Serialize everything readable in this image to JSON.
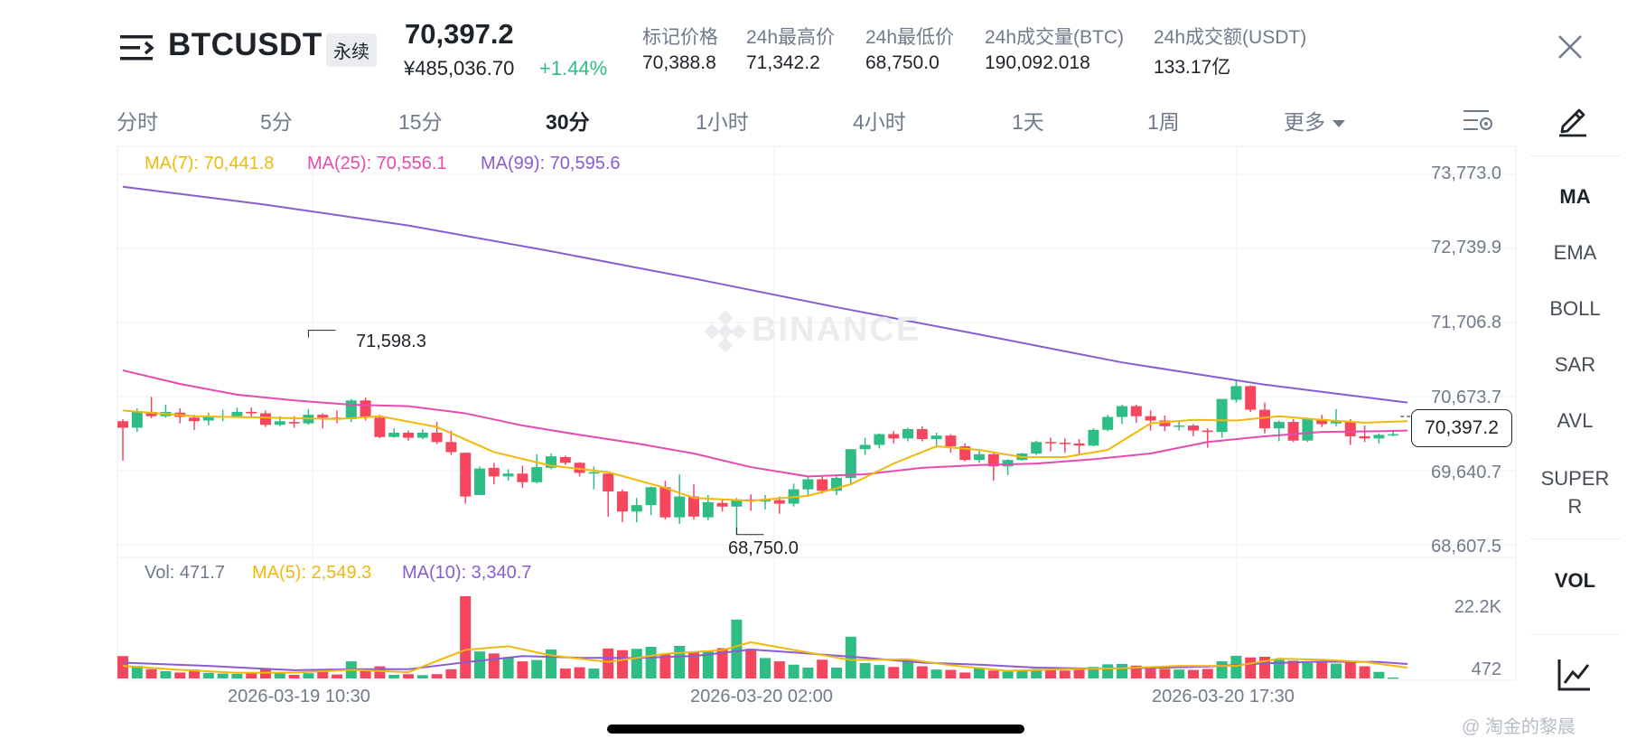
{
  "header": {
    "symbol": "BTCUSDT",
    "contract_type": "永续",
    "last_price": "70,397.2",
    "last_price_cny": "¥485,036.70",
    "change_pct": "+1.44%",
    "stats": [
      {
        "label": "标记价格",
        "value": "70,388.8"
      },
      {
        "label": "24h最高价",
        "value": "71,342.2"
      },
      {
        "label": "24h最低价",
        "value": "68,750.0"
      },
      {
        "label": "24h成交量(BTC)",
        "value": "190,092.018"
      },
      {
        "label": "24h成交额(USDT)",
        "value": "133.17亿"
      }
    ]
  },
  "intervals": [
    "分时",
    "5分",
    "15分",
    "30分",
    "1小时",
    "4小时",
    "1天",
    "1周",
    "更多"
  ],
  "active_interval": "30分",
  "sidebar": {
    "indicators": [
      "MA",
      "EMA",
      "BOLL",
      "SAR",
      "AVL",
      "SUPER"
    ],
    "indicator_super_wrap": "R",
    "sub_indicator": "VOL",
    "active_indicator": "MA"
  },
  "legend": {
    "ma7": "MA(7): 70,441.8",
    "ma25": "MA(25): 70,556.1",
    "ma99": "MA(99): 70,595.6",
    "vol": "Vol: 471.7",
    "vol_ma5": "MA(5): 2,549.3",
    "vol_ma10": "MA(10): 3,340.7"
  },
  "colors": {
    "up": "#2ebd85",
    "down": "#f6465d",
    "ma7": "#f0b90b",
    "ma25": "#e84ab0",
    "ma99": "#8a5cd1",
    "text_primary": "#1e2329",
    "text_secondary": "#707a8a"
  },
  "watermark": "BINANCE",
  "footer_credit": "@ 淘金的黎晨",
  "chart_data": {
    "type": "candlestick",
    "y_ticks": [
      "73,773.0",
      "72,739.9",
      "71,706.8",
      "70,673.7",
      "69,640.7",
      "68,607.5"
    ],
    "ylim": [
      68607.5,
      73773.0
    ],
    "vol_ticks": [
      "22.2K",
      "472"
    ],
    "x_tick_labels": [
      "2026-03-19 10:30",
      "2026-03-20 02:00",
      "2026-03-20 17:30"
    ],
    "current_price_label": "70,397.2",
    "current_price": 70397.2,
    "high_marker": {
      "label": "71,598.3",
      "value": 71598.3
    },
    "low_marker": {
      "label": "68,750.0",
      "value": 68750.0
    },
    "candles": [
      [
        70330,
        70240,
        70360,
        69780
      ],
      [
        70240,
        70460,
        70510,
        70180
      ],
      [
        70460,
        70400,
        70670,
        70370
      ],
      [
        70400,
        70460,
        70560,
        70380
      ],
      [
        70450,
        70390,
        70510,
        70300
      ],
      [
        70380,
        70330,
        70420,
        70210
      ],
      [
        70340,
        70390,
        70450,
        70270
      ],
      [
        70390,
        70400,
        70490,
        70330
      ],
      [
        70400,
        70460,
        70520,
        70380
      ],
      [
        70460,
        70440,
        70520,
        70380
      ],
      [
        70440,
        70280,
        70480,
        70250
      ],
      [
        70280,
        70330,
        70400,
        70260
      ],
      [
        70320,
        70300,
        70400,
        70240
      ],
      [
        70300,
        70420,
        70500,
        70280
      ],
      [
        70420,
        70380,
        70440,
        70230
      ],
      [
        70380,
        70360,
        70480,
        70300
      ],
      [
        70360,
        70620,
        70640,
        70320
      ],
      [
        70620,
        70380,
        70660,
        70340
      ],
      [
        70380,
        70110,
        70420,
        70090
      ],
      [
        70110,
        70170,
        70230,
        70100
      ],
      [
        70170,
        70100,
        70200,
        70060
      ],
      [
        70100,
        70170,
        70220,
        70080
      ],
      [
        70170,
        70040,
        70320,
        70010
      ],
      [
        70040,
        69900,
        70200,
        69860
      ],
      [
        69890,
        69280,
        69890,
        69180
      ],
      [
        69300,
        69670,
        69700,
        69300
      ],
      [
        69680,
        69560,
        69750,
        69450
      ],
      [
        69560,
        69600,
        69660,
        69500
      ],
      [
        69600,
        69480,
        69710,
        69400
      ],
      [
        69480,
        69690,
        69870,
        69460
      ],
      [
        69680,
        69840,
        69880,
        69660
      ],
      [
        69830,
        69750,
        69850,
        69720
      ],
      [
        69750,
        69610,
        69760,
        69560
      ],
      [
        69600,
        69620,
        69700,
        69380
      ],
      [
        69600,
        69350,
        69400,
        69000
      ],
      [
        69350,
        69070,
        69380,
        68920
      ],
      [
        69070,
        69160,
        69260,
        68920
      ],
      [
        69160,
        69410,
        69420,
        69020
      ],
      [
        69410,
        68990,
        69500,
        68960
      ],
      [
        68990,
        69280,
        69590,
        68900
      ],
      [
        69280,
        69000,
        69450,
        68960
      ],
      [
        68990,
        69200,
        69300,
        68950
      ],
      [
        69190,
        69140,
        69250,
        69070
      ],
      [
        69140,
        69240,
        69260,
        68750
      ],
      [
        69240,
        69220,
        69310,
        69080
      ],
      [
        69210,
        69240,
        69300,
        69100
      ],
      [
        69230,
        69180,
        69280,
        69040
      ],
      [
        69180,
        69380,
        69460,
        69140
      ],
      [
        69380,
        69520,
        69550,
        69280
      ],
      [
        69520,
        69360,
        69560,
        69320
      ],
      [
        69360,
        69540,
        69560,
        69300
      ],
      [
        69540,
        69940,
        69940,
        69460
      ],
      [
        69940,
        70000,
        70100,
        69860
      ],
      [
        70000,
        70150,
        70160,
        69950
      ],
      [
        70150,
        70090,
        70190,
        70020
      ],
      [
        70090,
        70220,
        70240,
        70050
      ],
      [
        70220,
        70080,
        70260,
        70050
      ],
      [
        70080,
        70130,
        70170,
        69960
      ],
      [
        70130,
        69980,
        70150,
        69890
      ],
      [
        69980,
        69790,
        70020,
        69770
      ],
      [
        69790,
        69870,
        69920,
        69750
      ],
      [
        69870,
        69700,
        69900,
        69500
      ],
      [
        69700,
        69790,
        69800,
        69580
      ],
      [
        69790,
        69880,
        69890,
        69780
      ],
      [
        69880,
        70040,
        70060,
        69860
      ],
      [
        70040,
        70030,
        70100,
        69910
      ],
      [
        70030,
        70020,
        70090,
        69890
      ],
      [
        70020,
        69990,
        70080,
        69860
      ],
      [
        69990,
        70210,
        70230,
        69980
      ],
      [
        70210,
        70390,
        70420,
        70190
      ],
      [
        70390,
        70540,
        70560,
        70290
      ],
      [
        70540,
        70400,
        70560,
        70310
      ],
      [
        70400,
        70340,
        70480,
        70200
      ],
      [
        70340,
        70260,
        70410,
        70190
      ],
      [
        70260,
        70270,
        70340,
        70200
      ],
      [
        70270,
        70200,
        70290,
        70120
      ],
      [
        70200,
        70180,
        70230,
        69960
      ],
      [
        70180,
        70640,
        70640,
        70100
      ],
      [
        70630,
        70820,
        70910,
        70590
      ],
      [
        70820,
        70490,
        70830,
        70460
      ],
      [
        70490,
        70230,
        70590,
        70160
      ],
      [
        70230,
        70320,
        70340,
        70050
      ],
      [
        70320,
        70060,
        70360,
        70040
      ],
      [
        70060,
        70360,
        70380,
        70040
      ],
      [
        70360,
        70290,
        70420,
        70250
      ],
      [
        70300,
        70330,
        70500,
        70260
      ],
      [
        70320,
        70120,
        70360,
        70000
      ],
      [
        70120,
        70090,
        70270,
        70040
      ],
      [
        70090,
        70140,
        70160,
        70020
      ],
      [
        70140,
        70150,
        70210,
        70120
      ]
    ],
    "volumes": [
      6800,
      3800,
      2800,
      2200,
      1800,
      2700,
      1700,
      1500,
      1400,
      1700,
      2800,
      1600,
      1100,
      1600,
      2400,
      1200,
      5200,
      2400,
      3700,
      1100,
      1300,
      1000,
      1300,
      2800,
      25000,
      8200,
      7600,
      6500,
      5200,
      5600,
      8800,
      3000,
      3400,
      3000,
      9100,
      8600,
      9000,
      9600,
      7600,
      9900,
      8100,
      8500,
      9200,
      17900,
      9000,
      6200,
      5200,
      4200,
      3300,
      5700,
      3300,
      12700,
      4700,
      4100,
      3500,
      5600,
      3700,
      2700,
      2600,
      1800,
      3300,
      2400,
      2100,
      2400,
      2900,
      2900,
      2400,
      3100,
      3500,
      4300,
      4400,
      3900,
      3500,
      2900,
      2700,
      2600,
      2900,
      5200,
      6900,
      6400,
      6600,
      5700,
      5400,
      4700,
      4800,
      4500,
      5000,
      3700,
      2000,
      300
    ],
    "vol_ymax": 25000,
    "ma7_line": [
      [
        0,
        70480
      ],
      [
        5,
        70400
      ],
      [
        10,
        70380
      ],
      [
        15,
        70360
      ],
      [
        18,
        70400
      ],
      [
        22,
        70250
      ],
      [
        26,
        69900
      ],
      [
        30,
        69710
      ],
      [
        34,
        69620
      ],
      [
        38,
        69400
      ],
      [
        40,
        69260
      ],
      [
        42,
        69240
      ],
      [
        44,
        69220
      ],
      [
        48,
        69290
      ],
      [
        51,
        69450
      ],
      [
        54,
        69740
      ],
      [
        57,
        69980
      ],
      [
        60,
        69930
      ],
      [
        63,
        69830
      ],
      [
        66,
        69830
      ],
      [
        69,
        69930
      ],
      [
        72,
        70300
      ],
      [
        75,
        70350
      ],
      [
        78,
        70340
      ],
      [
        81,
        70400
      ],
      [
        84,
        70350
      ],
      [
        87,
        70310
      ],
      [
        90,
        70330
      ]
    ],
    "ma25_line": [
      [
        0,
        71040
      ],
      [
        4,
        70850
      ],
      [
        8,
        70700
      ],
      [
        12,
        70620
      ],
      [
        16,
        70560
      ],
      [
        20,
        70540
      ],
      [
        24,
        70440
      ],
      [
        28,
        70270
      ],
      [
        32,
        70140
      ],
      [
        36,
        70020
      ],
      [
        40,
        69880
      ],
      [
        44,
        69690
      ],
      [
        48,
        69560
      ],
      [
        52,
        69590
      ],
      [
        56,
        69680
      ],
      [
        60,
        69720
      ],
      [
        64,
        69740
      ],
      [
        68,
        69800
      ],
      [
        72,
        69880
      ],
      [
        76,
        70040
      ],
      [
        80,
        70120
      ],
      [
        84,
        70180
      ],
      [
        88,
        70190
      ],
      [
        90,
        70200
      ]
    ],
    "ma99_line": [
      [
        0,
        73600
      ],
      [
        10,
        73350
      ],
      [
        20,
        73060
      ],
      [
        30,
        72700
      ],
      [
        40,
        72320
      ],
      [
        50,
        71920
      ],
      [
        60,
        71540
      ],
      [
        70,
        71150
      ],
      [
        80,
        70840
      ],
      [
        90,
        70590
      ]
    ],
    "vol_ma5_line": [
      [
        0,
        3800
      ],
      [
        4,
        2600
      ],
      [
        8,
        1700
      ],
      [
        12,
        1800
      ],
      [
        16,
        2600
      ],
      [
        20,
        1900
      ],
      [
        24,
        8700
      ],
      [
        27,
        9800
      ],
      [
        30,
        7000
      ],
      [
        34,
        5000
      ],
      [
        38,
        7500
      ],
      [
        42,
        8600
      ],
      [
        44,
        11000
      ],
      [
        48,
        7900
      ],
      [
        51,
        5600
      ],
      [
        55,
        5800
      ],
      [
        58,
        4000
      ],
      [
        62,
        2300
      ],
      [
        66,
        2800
      ],
      [
        70,
        3100
      ],
      [
        74,
        3800
      ],
      [
        78,
        3800
      ],
      [
        81,
        6000
      ],
      [
        84,
        5700
      ],
      [
        87,
        5000
      ],
      [
        90,
        3300
      ]
    ],
    "vol_ma10_line": [
      [
        0,
        4800
      ],
      [
        6,
        3800
      ],
      [
        12,
        2500
      ],
      [
        16,
        2800
      ],
      [
        20,
        2800
      ],
      [
        24,
        4900
      ],
      [
        28,
        6800
      ],
      [
        32,
        6300
      ],
      [
        36,
        6200
      ],
      [
        40,
        6800
      ],
      [
        44,
        8800
      ],
      [
        48,
        7600
      ],
      [
        52,
        6300
      ],
      [
        56,
        4800
      ],
      [
        60,
        4200
      ],
      [
        64,
        3300
      ],
      [
        68,
        3000
      ],
      [
        72,
        3200
      ],
      [
        76,
        3600
      ],
      [
        80,
        4600
      ],
      [
        84,
        5100
      ],
      [
        88,
        5000
      ],
      [
        90,
        4400
      ]
    ]
  }
}
